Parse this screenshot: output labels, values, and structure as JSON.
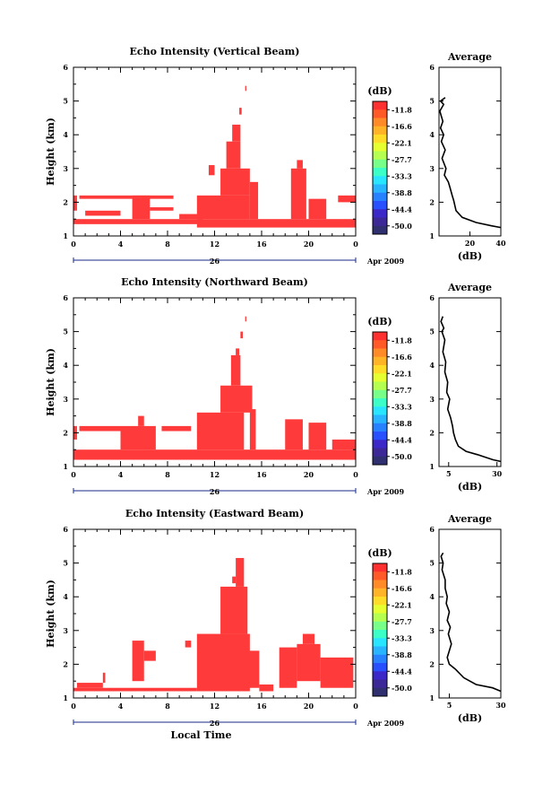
{
  "colors": {
    "echo": "#ff3a3a",
    "axis": "#000000",
    "line": "#000000",
    "date_line": "#1a2a8a"
  },
  "shared": {
    "ylabel": "Height (km)",
    "date_day": "26",
    "date_label": "Apr 2009",
    "xlabel": "Local Time",
    "xticks": [
      "0",
      "4",
      "8",
      "12",
      "16",
      "20",
      "0"
    ],
    "yticks": [
      "1",
      "2",
      "3",
      "4",
      "5",
      "6"
    ],
    "colorbar_unit": "(dB)",
    "colorbar_ticks": [
      "-11.8",
      "-16.6",
      "-22.1",
      "-27.7",
      "-33.3",
      "-38.8",
      "-44.4",
      "-50.0"
    ],
    "colorbar_colors": [
      "#ff3030",
      "#ff5a28",
      "#ff8a28",
      "#ffb428",
      "#ffdc28",
      "#e6ff30",
      "#b4ff50",
      "#78ff8a",
      "#3cffc8",
      "#28e6ff",
      "#28b4ff",
      "#2882ff",
      "#2850ff",
      "#3c28c8",
      "#3c2896",
      "#303070"
    ],
    "average_title": "Average",
    "average_xlabel": "(dB)"
  },
  "chart_data": [
    {
      "type": "heatmap",
      "title": "Echo Intensity (Vertical Beam)",
      "xlabel": "Local Time",
      "ylabel": "Height (km)",
      "xlim": [
        0,
        24
      ],
      "ylim": [
        1,
        6
      ],
      "cells": [
        {
          "x": [
            0,
            11
          ],
          "y": [
            1.35,
            1.5
          ]
        },
        {
          "x": [
            0,
            0.3
          ],
          "y": [
            1.75,
            2.2
          ]
        },
        {
          "x": [
            0.5,
            5
          ],
          "y": [
            2.1,
            2.2
          ]
        },
        {
          "x": [
            5,
            6.5
          ],
          "y": [
            1.5,
            2.2
          ]
        },
        {
          "x": [
            5,
            8.5
          ],
          "y": [
            2.1,
            2.2
          ]
        },
        {
          "x": [
            1,
            4
          ],
          "y": [
            1.6,
            1.75
          ]
        },
        {
          "x": [
            6.5,
            8.5
          ],
          "y": [
            1.75,
            1.85
          ]
        },
        {
          "x": [
            9,
            11
          ],
          "y": [
            1.5,
            1.65
          ]
        },
        {
          "x": [
            10.5,
            16
          ],
          "y": [
            1.25,
            1.5
          ]
        },
        {
          "x": [
            10.5,
            15
          ],
          "y": [
            1.5,
            2.2
          ]
        },
        {
          "x": [
            12.5,
            15
          ],
          "y": [
            2.2,
            3.0
          ]
        },
        {
          "x": [
            13,
            14.2
          ],
          "y": [
            3.0,
            3.8
          ]
        },
        {
          "x": [
            13.5,
            14.2
          ],
          "y": [
            3.8,
            4.3
          ]
        },
        {
          "x": [
            14.1,
            14.3
          ],
          "y": [
            4.6,
            4.8
          ]
        },
        {
          "x": [
            14.6,
            14.7
          ],
          "y": [
            5.3,
            5.45
          ]
        },
        {
          "x": [
            15,
            15.7
          ],
          "y": [
            1.5,
            2.6
          ]
        },
        {
          "x": [
            16,
            24
          ],
          "y": [
            1.25,
            1.5
          ]
        },
        {
          "x": [
            18.5,
            19.8
          ],
          "y": [
            1.5,
            3.0
          ]
        },
        {
          "x": [
            19,
            19.5
          ],
          "y": [
            3.0,
            3.25
          ]
        },
        {
          "x": [
            20,
            21.5
          ],
          "y": [
            1.5,
            2.1
          ]
        },
        {
          "x": [
            22.5,
            24
          ],
          "y": [
            2.0,
            2.2
          ]
        },
        {
          "x": [
            11.5,
            12
          ],
          "y": [
            2.8,
            3.1
          ]
        }
      ],
      "average": {
        "xlim": [
          0,
          40
        ],
        "xticks": [
          "20",
          "40"
        ],
        "profile": [
          [
            4,
            5.1
          ],
          [
            1,
            5.0
          ],
          [
            3,
            4.9
          ],
          [
            0.5,
            4.7
          ],
          [
            2.5,
            4.4
          ],
          [
            1,
            4.2
          ],
          [
            3,
            4.0
          ],
          [
            1.5,
            3.8
          ],
          [
            4,
            3.55
          ],
          [
            2,
            3.3
          ],
          [
            4.5,
            3.0
          ],
          [
            3.5,
            2.8
          ],
          [
            6,
            2.6
          ],
          [
            7,
            2.45
          ],
          [
            8.5,
            2.2
          ],
          [
            9.5,
            2.05
          ],
          [
            11,
            1.75
          ],
          [
            15,
            1.55
          ],
          [
            24,
            1.4
          ],
          [
            34,
            1.3
          ],
          [
            40,
            1.25
          ]
        ]
      }
    },
    {
      "type": "heatmap",
      "title": "Echo Intensity (Northward Beam)",
      "xlabel": "Local Time",
      "ylabel": "Height (km)",
      "xlim": [
        0,
        24
      ],
      "ylim": [
        1,
        6
      ],
      "cells": [
        {
          "x": [
            0,
            24
          ],
          "y": [
            1.2,
            1.5
          ]
        },
        {
          "x": [
            0,
            0.3
          ],
          "y": [
            1.8,
            2.2
          ]
        },
        {
          "x": [
            0.5,
            4
          ],
          "y": [
            2.05,
            2.2
          ]
        },
        {
          "x": [
            4,
            7
          ],
          "y": [
            1.5,
            2.2
          ]
        },
        {
          "x": [
            5.5,
            6
          ],
          "y": [
            2.2,
            2.5
          ]
        },
        {
          "x": [
            7.5,
            10
          ],
          "y": [
            2.05,
            2.2
          ]
        },
        {
          "x": [
            10.5,
            14.5
          ],
          "y": [
            1.5,
            2.6
          ]
        },
        {
          "x": [
            12.5,
            15.2
          ],
          "y": [
            2.6,
            3.4
          ]
        },
        {
          "x": [
            13.4,
            14.2
          ],
          "y": [
            3.4,
            4.3
          ]
        },
        {
          "x": [
            14.2,
            14.4
          ],
          "y": [
            4.8,
            5.0
          ]
        },
        {
          "x": [
            14.6,
            14.7
          ],
          "y": [
            5.3,
            5.45
          ]
        },
        {
          "x": [
            15,
            15.5
          ],
          "y": [
            1.5,
            2.7
          ]
        },
        {
          "x": [
            18,
            19.5
          ],
          "y": [
            1.5,
            2.4
          ]
        },
        {
          "x": [
            20,
            21.5
          ],
          "y": [
            1.5,
            2.3
          ]
        },
        {
          "x": [
            22,
            24
          ],
          "y": [
            1.5,
            1.8
          ]
        },
        {
          "x": [
            13.8,
            14.1
          ],
          "y": [
            4.3,
            4.5
          ]
        }
      ],
      "average": {
        "xlim": [
          0,
          32
        ],
        "xticks": [
          "5",
          "30"
        ],
        "profile": [
          [
            2,
            5.45
          ],
          [
            1,
            5.3
          ],
          [
            2.5,
            5.1
          ],
          [
            1.5,
            5.0
          ],
          [
            3,
            4.75
          ],
          [
            2,
            4.4
          ],
          [
            3.5,
            4.1
          ],
          [
            3,
            3.8
          ],
          [
            4.5,
            3.5
          ],
          [
            4,
            3.2
          ],
          [
            5.5,
            3.0
          ],
          [
            4.5,
            2.7
          ],
          [
            6,
            2.45
          ],
          [
            7,
            2.2
          ],
          [
            7.5,
            2.0
          ],
          [
            8.5,
            1.8
          ],
          [
            10,
            1.6
          ],
          [
            14,
            1.45
          ],
          [
            20,
            1.35
          ],
          [
            28,
            1.2
          ],
          [
            32,
            1.15
          ]
        ]
      }
    },
    {
      "type": "heatmap",
      "title": "Echo Intensity (Eastward Beam)",
      "xlabel": "Local Time",
      "ylabel": "Height (km)",
      "xlim": [
        0,
        24
      ],
      "ylim": [
        1,
        6
      ],
      "cells": [
        {
          "x": [
            0,
            10.5
          ],
          "y": [
            1.2,
            1.3
          ]
        },
        {
          "x": [
            0.3,
            2.5
          ],
          "y": [
            1.3,
            1.45
          ]
        },
        {
          "x": [
            2.5,
            2.7
          ],
          "y": [
            1.45,
            1.75
          ]
        },
        {
          "x": [
            5,
            6
          ],
          "y": [
            1.5,
            2.7
          ]
        },
        {
          "x": [
            6,
            7
          ],
          "y": [
            2.1,
            2.4
          ]
        },
        {
          "x": [
            9.5,
            10
          ],
          "y": [
            2.5,
            2.7
          ]
        },
        {
          "x": [
            10.5,
            15
          ],
          "y": [
            1.2,
            2.9
          ]
        },
        {
          "x": [
            12.5,
            14.8
          ],
          "y": [
            2.9,
            4.3
          ]
        },
        {
          "x": [
            13.8,
            14.5
          ],
          "y": [
            4.3,
            5.15
          ]
        },
        {
          "x": [
            14.5,
            15.8
          ],
          "y": [
            1.3,
            2.4
          ]
        },
        {
          "x": [
            15.8,
            17
          ],
          "y": [
            1.2,
            1.4
          ]
        },
        {
          "x": [
            17.5,
            19
          ],
          "y": [
            1.3,
            2.5
          ]
        },
        {
          "x": [
            19,
            21
          ],
          "y": [
            1.5,
            2.6
          ]
        },
        {
          "x": [
            19.5,
            20.5
          ],
          "y": [
            2.6,
            2.9
          ]
        },
        {
          "x": [
            21,
            23.8
          ],
          "y": [
            1.3,
            2.2
          ]
        },
        {
          "x": [
            13.5,
            13.8
          ],
          "y": [
            4.4,
            4.6
          ]
        }
      ],
      "average": {
        "xlim": [
          0,
          30
        ],
        "xticks": [
          "5",
          "30"
        ],
        "profile": [
          [
            2,
            5.3
          ],
          [
            1,
            5.2
          ],
          [
            2,
            5.0
          ],
          [
            1.5,
            4.8
          ],
          [
            3,
            4.5
          ],
          [
            3,
            4.25
          ],
          [
            4,
            4.0
          ],
          [
            3.5,
            3.8
          ],
          [
            5,
            3.55
          ],
          [
            4,
            3.3
          ],
          [
            5.5,
            3.1
          ],
          [
            4.5,
            2.9
          ],
          [
            6,
            2.6
          ],
          [
            5,
            2.4
          ],
          [
            4,
            2.2
          ],
          [
            5,
            2.0
          ],
          [
            8,
            1.85
          ],
          [
            12,
            1.6
          ],
          [
            18,
            1.4
          ],
          [
            26,
            1.3
          ],
          [
            30,
            1.2
          ]
        ]
      }
    }
  ]
}
